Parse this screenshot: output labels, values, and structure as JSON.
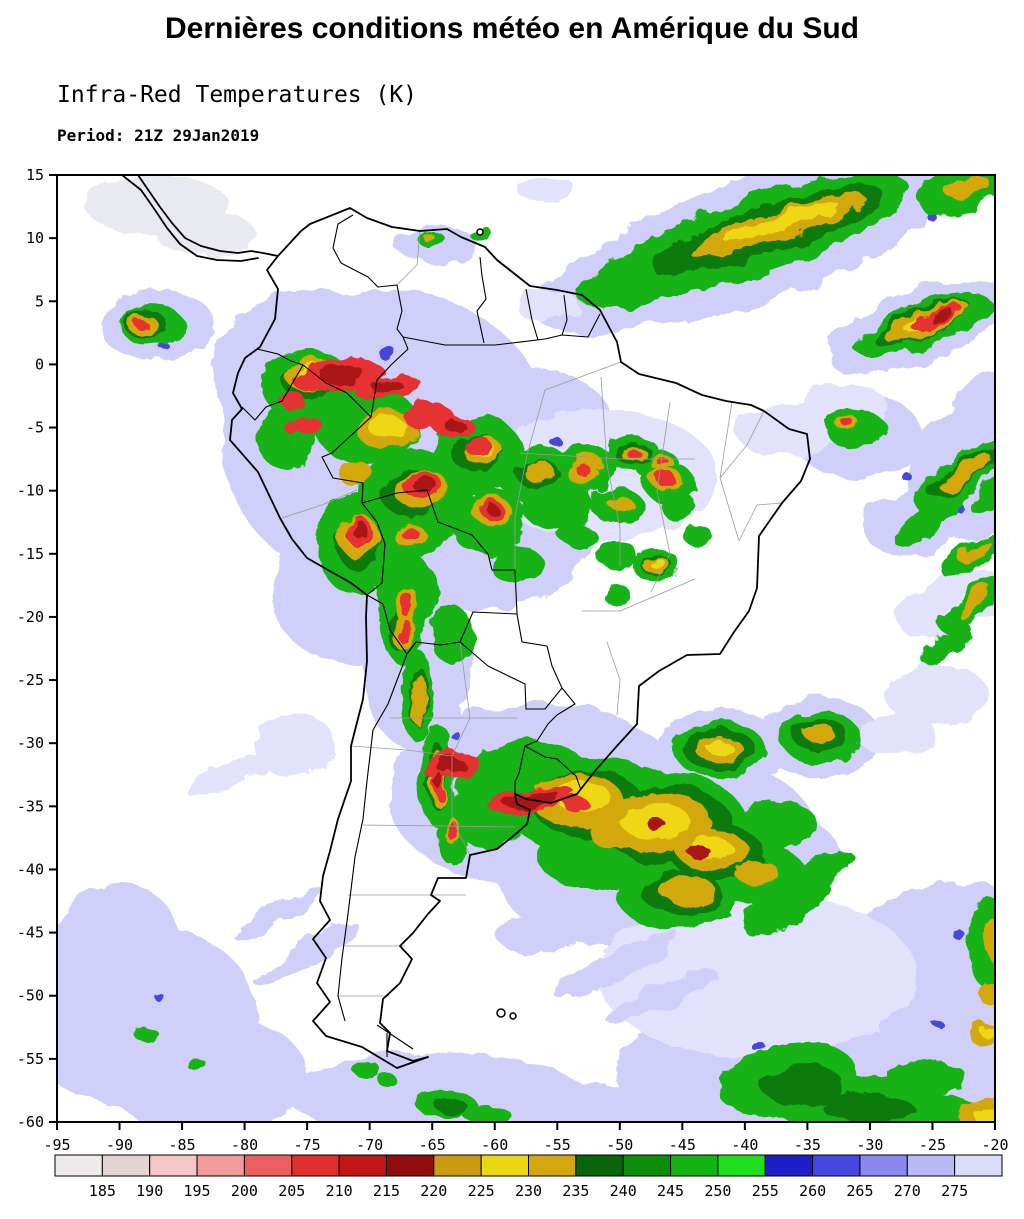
{
  "header": {
    "title": "Dernières conditions météo en Amérique du Sud",
    "subtitle": "Infra-Red Temperatures (K)",
    "period": "Period: 21Z 29Jan2019"
  },
  "map": {
    "x_range": [
      -95,
      -20
    ],
    "y_range": [
      -60,
      15
    ],
    "x_ticks": [
      "-95",
      "-90",
      "-85",
      "-80",
      "-75",
      "-70",
      "-65",
      "-60",
      "-55",
      "-50",
      "-45",
      "-40",
      "-35",
      "-30",
      "-25",
      "-20"
    ],
    "y_ticks": [
      "15",
      "10",
      "5",
      "0",
      "-5",
      "-10",
      "-15",
      "-20",
      "-25",
      "-30",
      "-35",
      "-40",
      "-45",
      "-50",
      "-55",
      "-60"
    ]
  },
  "colorbar": {
    "labels": [
      "185",
      "190",
      "195",
      "200",
      "205",
      "210",
      "215",
      "220",
      "225",
      "230",
      "235",
      "240",
      "245",
      "250",
      "255",
      "260",
      "265",
      "270",
      "275"
    ],
    "colors": [
      "#f0ebeb",
      "#e3d3d3",
      "#f6c6c6",
      "#f29b9b",
      "#ec5f5f",
      "#e02f2f",
      "#c01616",
      "#8f0d0d",
      "#c89b12",
      "#ead714",
      "#d2a80e",
      "#0a640a",
      "#0e8c0e",
      "#12b212",
      "#1ede1e",
      "#1e1ec8",
      "#4646e0",
      "#8888ee",
      "#b9b9f6",
      "#dcdcfb"
    ]
  }
}
